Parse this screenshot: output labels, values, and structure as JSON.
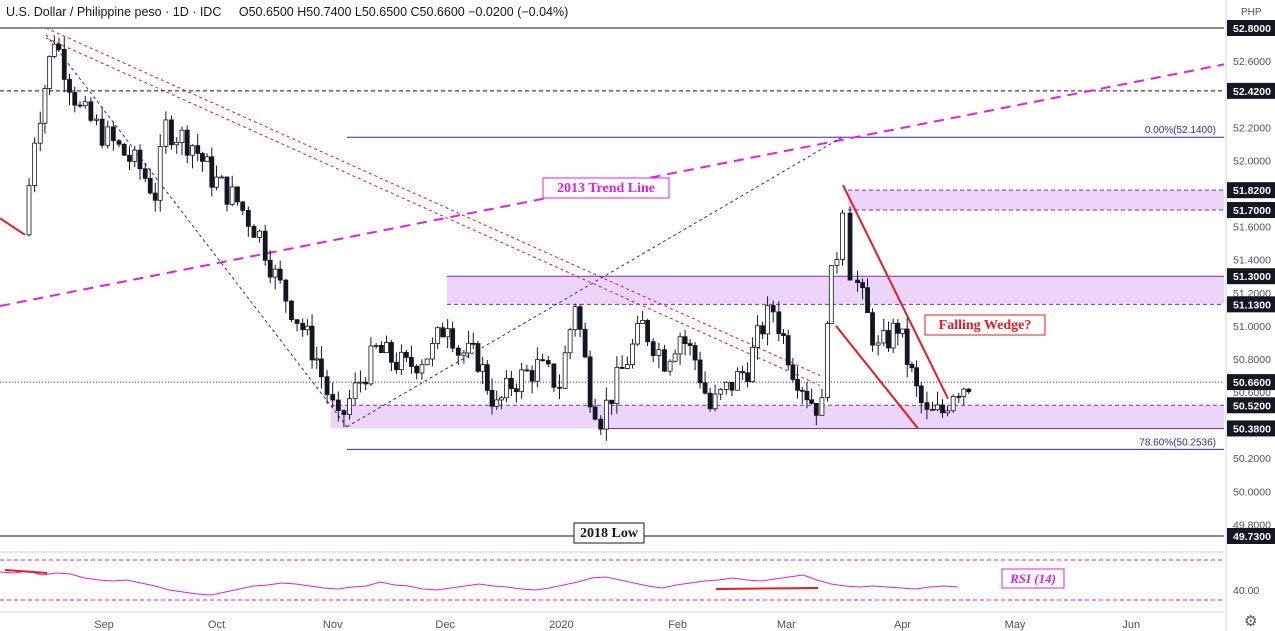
{
  "header": {
    "title": "U.S. Dollar / Philippine peso · 1D · IDC",
    "ohlc": "O50.6500 H50.7400 L50.6500 C50.6600 −0.0200 (−0.04%)"
  },
  "currency_label": "PHP",
  "colors": {
    "up": "#ffffff",
    "down": "#131722",
    "trend2013": "#e020e0",
    "fib": "#2b2bb0",
    "wedge": "#e51c23",
    "zone": "#e5c7f7",
    "rsi": "#e020e0",
    "price_badge": "#131722"
  },
  "chart_data": {
    "type": "candlestick",
    "y_range": [
      49.7,
      52.84
    ],
    "price_ticks": [
      49.8,
      50.0,
      50.2,
      50.4,
      50.6,
      50.8,
      51.0,
      51.2,
      51.4,
      51.6,
      51.8,
      52.0,
      52.2,
      52.4,
      52.6,
      52.8
    ],
    "x_labels": [
      {
        "label": "Sep",
        "date": "2019-09-01"
      },
      {
        "label": "Oct",
        "date": "2019-10-01"
      },
      {
        "label": "Nov",
        "date": "2019-11-01"
      },
      {
        "label": "Dec",
        "date": "2019-12-01"
      },
      {
        "label": "2020",
        "date": "2020-01-01"
      },
      {
        "label": "Feb",
        "date": "2020-02-01"
      },
      {
        "label": "Mar",
        "date": "2020-03-01"
      },
      {
        "label": "Apr",
        "date": "2020-04-01"
      },
      {
        "label": "May",
        "date": "2020-05-01"
      },
      {
        "label": "Jun",
        "date": "2020-06-01"
      }
    ],
    "closes": [
      {
        "date": "2019-08-12",
        "close": 51.55
      },
      {
        "date": "2019-08-15",
        "close": 52.15
      },
      {
        "date": "2019-08-20",
        "close": 52.75
      },
      {
        "date": "2019-08-27",
        "close": 52.3
      },
      {
        "date": "2019-09-05",
        "close": 52.1
      },
      {
        "date": "2019-09-12",
        "close": 51.95
      },
      {
        "date": "2019-09-16",
        "close": 51.8
      },
      {
        "date": "2019-09-19",
        "close": 52.2
      },
      {
        "date": "2019-09-26",
        "close": 52.1
      },
      {
        "date": "2019-10-01",
        "close": 51.9
      },
      {
        "date": "2019-10-08",
        "close": 51.75
      },
      {
        "date": "2019-10-14",
        "close": 51.55
      },
      {
        "date": "2019-10-18",
        "close": 51.3
      },
      {
        "date": "2019-10-24",
        "close": 51.05
      },
      {
        "date": "2019-10-29",
        "close": 50.8
      },
      {
        "date": "2019-11-04",
        "close": 50.4
      },
      {
        "date": "2019-11-07",
        "close": 50.55
      },
      {
        "date": "2019-11-14",
        "close": 50.85
      },
      {
        "date": "2019-11-22",
        "close": 50.75
      },
      {
        "date": "2019-11-29",
        "close": 50.85
      },
      {
        "date": "2019-12-03",
        "close": 51.05
      },
      {
        "date": "2019-12-06",
        "close": 50.85
      },
      {
        "date": "2019-12-11",
        "close": 50.8
      },
      {
        "date": "2019-12-16",
        "close": 50.5
      },
      {
        "date": "2019-12-20",
        "close": 50.65
      },
      {
        "date": "2019-12-27",
        "close": 50.75
      },
      {
        "date": "2020-01-02",
        "close": 50.65
      },
      {
        "date": "2020-01-06",
        "close": 51.15
      },
      {
        "date": "2020-01-10",
        "close": 50.6
      },
      {
        "date": "2020-01-13",
        "close": 50.45
      },
      {
        "date": "2020-01-20",
        "close": 50.8
      },
      {
        "date": "2020-01-24",
        "close": 51.0
      },
      {
        "date": "2020-01-30",
        "close": 50.8
      },
      {
        "date": "2020-02-03",
        "close": 50.95
      },
      {
        "date": "2020-02-07",
        "close": 50.8
      },
      {
        "date": "2020-02-11",
        "close": 50.5
      },
      {
        "date": "2020-02-17",
        "close": 50.65
      },
      {
        "date": "2020-02-21",
        "close": 50.75
      },
      {
        "date": "2020-02-25",
        "close": 51.0
      },
      {
        "date": "2020-02-28",
        "close": 51.1
      },
      {
        "date": "2020-03-04",
        "close": 50.75
      },
      {
        "date": "2020-03-09",
        "close": 50.55
      },
      {
        "date": "2020-03-12",
        "close": 50.5
      },
      {
        "date": "2020-03-13",
        "close": 51.1
      },
      {
        "date": "2020-03-16",
        "close": 51.45
      },
      {
        "date": "2020-03-18",
        "close": 51.75
      },
      {
        "date": "2020-03-20",
        "close": 51.35
      },
      {
        "date": "2020-03-24",
        "close": 51.05
      },
      {
        "date": "2020-03-27",
        "close": 50.85
      },
      {
        "date": "2020-04-01",
        "close": 51.0
      },
      {
        "date": "2020-04-06",
        "close": 50.6
      },
      {
        "date": "2020-04-09",
        "close": 50.45
      },
      {
        "date": "2020-04-13",
        "close": 50.48
      },
      {
        "date": "2020-04-16",
        "close": 50.62
      },
      {
        "date": "2020-04-20",
        "close": 50.66
      }
    ],
    "current_price": {
      "value": 50.66,
      "label": "50.6600"
    },
    "levels": [
      {
        "value": 52.8,
        "label": "52.8000",
        "style": "solid"
      },
      {
        "value": 52.42,
        "label": "52.4200",
        "style": "dashed"
      },
      {
        "value": 51.82,
        "label": "51.8200",
        "style": "dashed"
      },
      {
        "value": 51.7,
        "label": "51.7000",
        "style": "dashed"
      },
      {
        "value": 51.3,
        "label": "51.3000",
        "style": "solid"
      },
      {
        "value": 51.13,
        "label": "51.1300",
        "style": "dashed"
      },
      {
        "value": 50.52,
        "label": "50.5200",
        "style": "dashed"
      },
      {
        "value": 50.38,
        "label": "50.3800",
        "style": "solid"
      },
      {
        "value": 49.73,
        "label": "49.7300",
        "style": "solid"
      }
    ],
    "zones": [
      {
        "from": 51.7,
        "to": 51.82
      },
      {
        "from": 51.13,
        "to": 51.3
      },
      {
        "from": 50.38,
        "to": 50.52
      }
    ],
    "fib_levels": [
      {
        "value": 52.14,
        "label": "0.00%(52.1400)"
      },
      {
        "value": 50.2536,
        "label": "78.60%(50.2536)"
      }
    ],
    "annotations": {
      "trend_line": "2013 Trend Line",
      "falling_wedge": "Falling Wedge?",
      "low_2018": "2018 Low"
    },
    "rsi": {
      "label": "RSI (14)",
      "period": 14,
      "ticks": [
        "40.00"
      ],
      "values": [
        58,
        57,
        59,
        55,
        57,
        56,
        52,
        50,
        49,
        50,
        47,
        44,
        40,
        38,
        36,
        35,
        38,
        41,
        44,
        45,
        47,
        46,
        44,
        42,
        41,
        43,
        44,
        48,
        45,
        44,
        41,
        40,
        42,
        44,
        46,
        44,
        43,
        41,
        40,
        42,
        45,
        48,
        52,
        53,
        50,
        47,
        44,
        42,
        45,
        47,
        49,
        50,
        52,
        50,
        49,
        51,
        53,
        55,
        50,
        46,
        44,
        43,
        44,
        43,
        42,
        41,
        43,
        44,
        43
      ]
    }
  }
}
